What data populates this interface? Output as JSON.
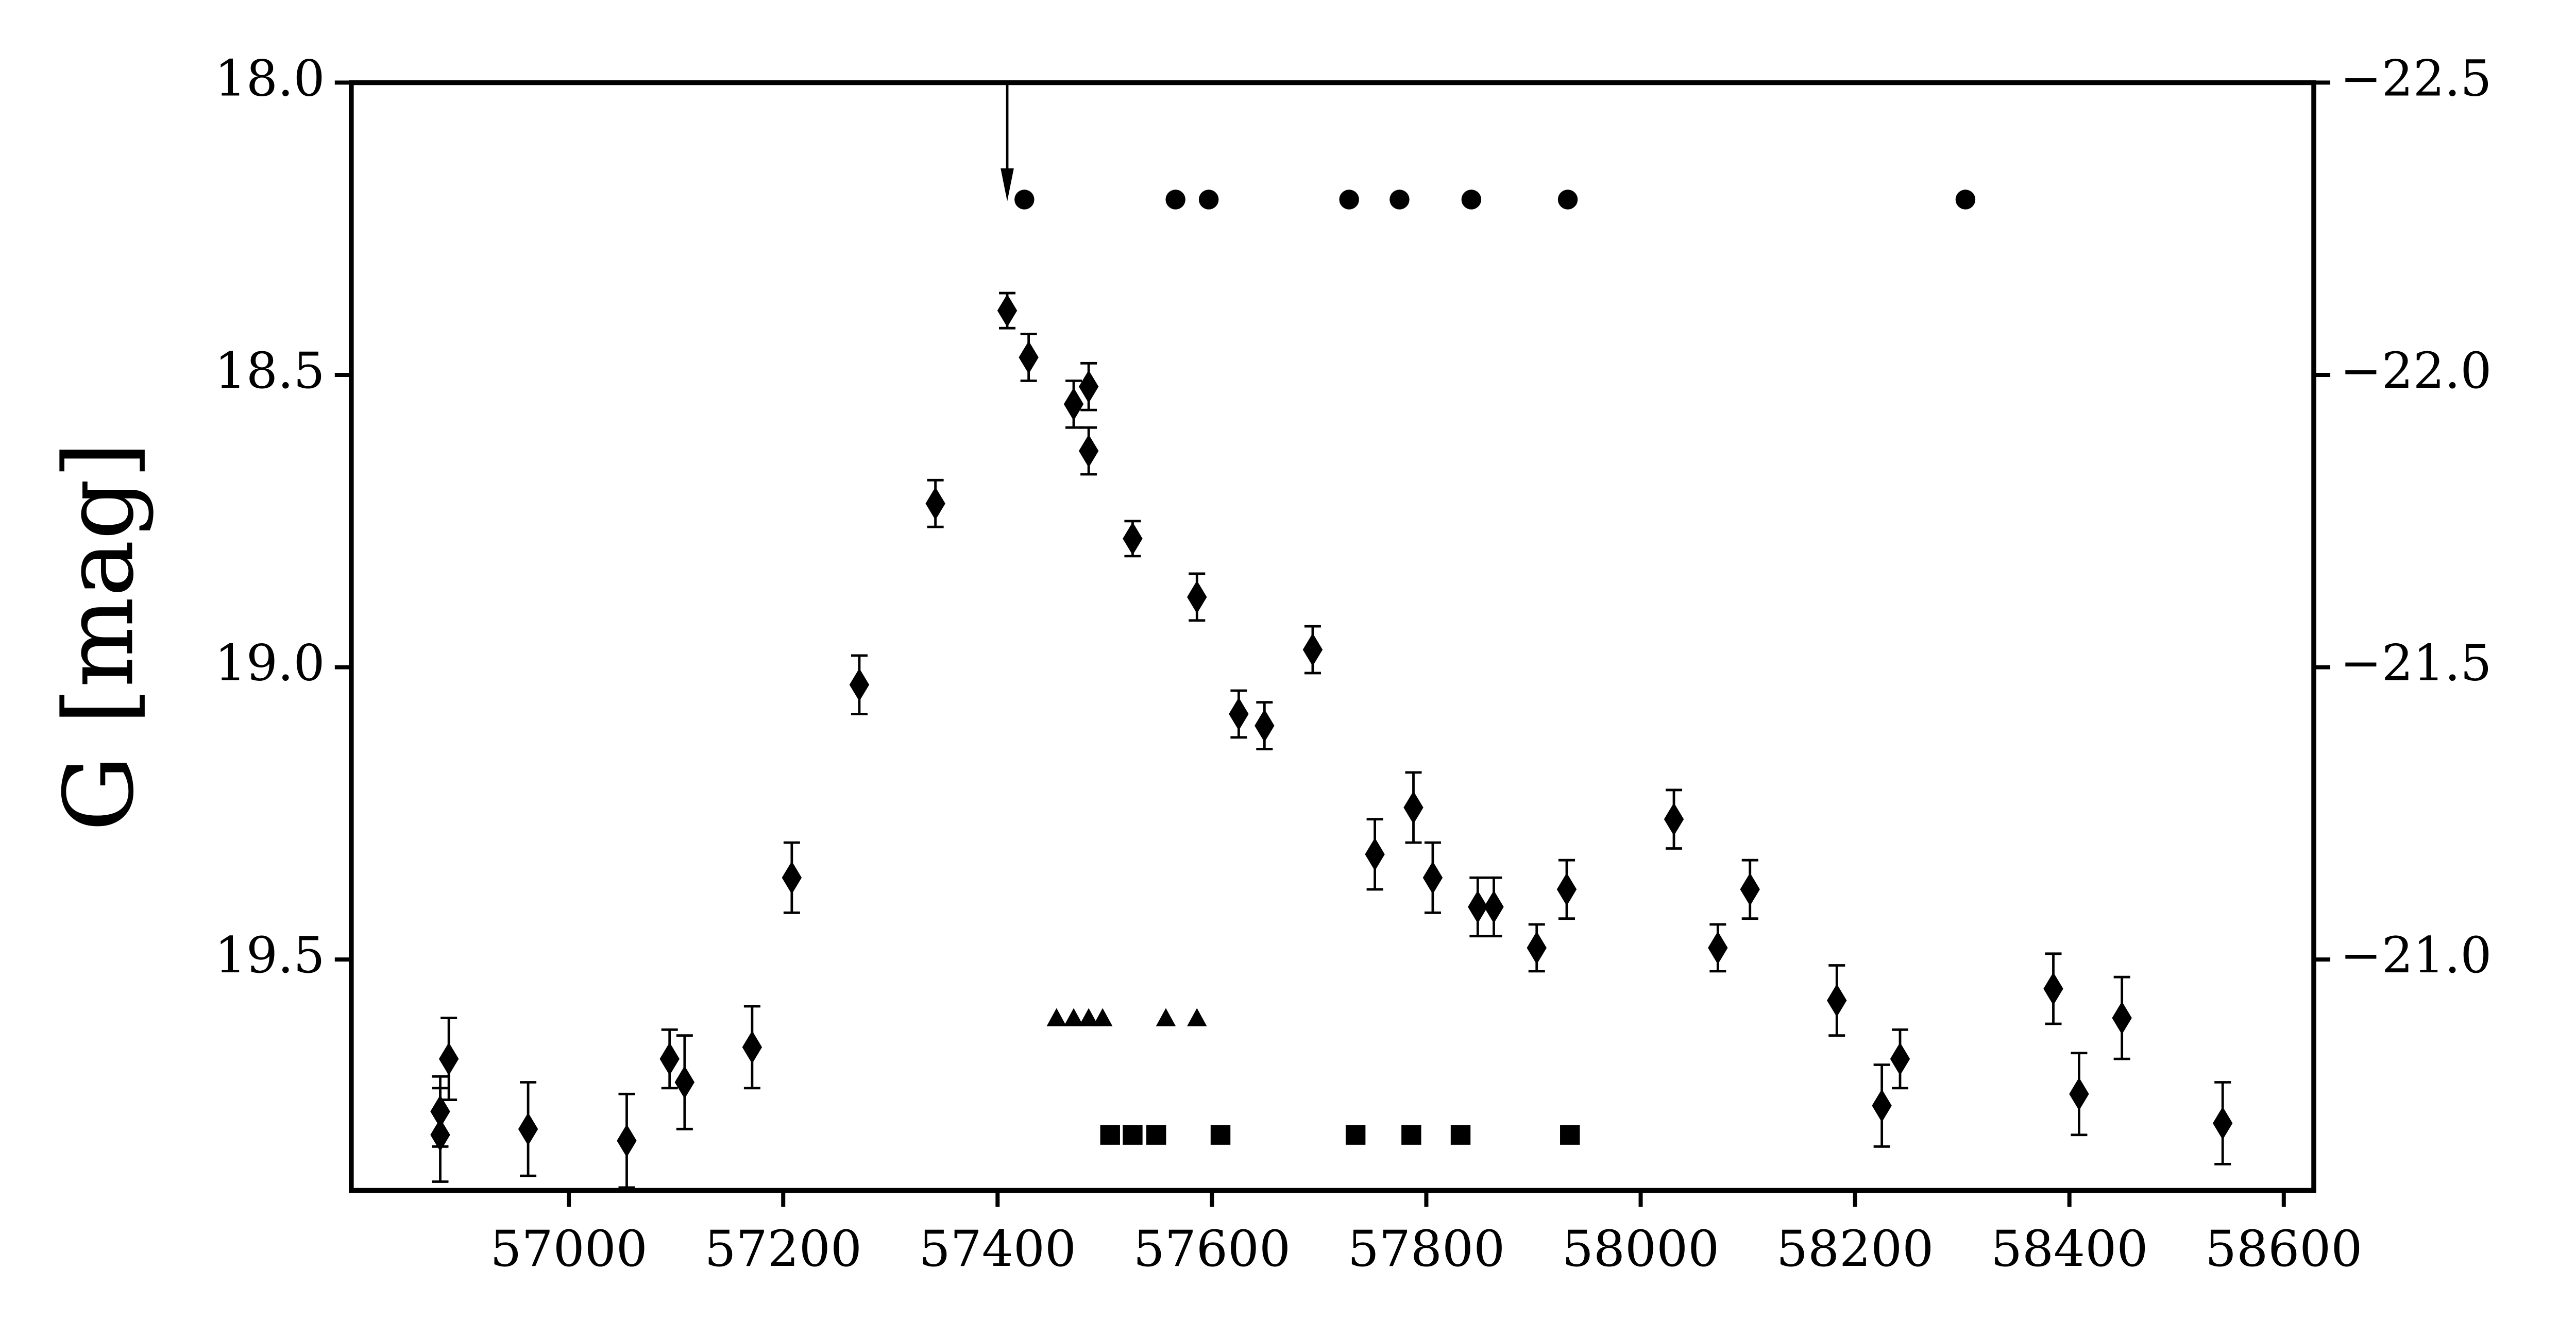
{
  "chart_data": {
    "type": "scatter",
    "y_label": "G [mag]",
    "xlim": [
      56797,
      58628
    ],
    "xticks": [
      57000,
      57200,
      57400,
      57600,
      57800,
      58000,
      58200,
      58400,
      58600
    ],
    "ylim": [
      18.0,
      19.895
    ],
    "y_inverted": true,
    "yticks": [
      {
        "value": 18.0,
        "label": "18.0"
      },
      18.5,
      {
        "value": 19.0,
        "label": "19.0"
      },
      19.5
    ],
    "y2lim": [
      -22.5,
      -20.605
    ],
    "y2ticks": [
      {
        "value": -22.5,
        "label": "−22.5"
      },
      {
        "value": -22.0,
        "label": "−22.0"
      },
      {
        "value": -21.5,
        "label": "−21.5"
      },
      {
        "value": -21.0,
        "label": "−21.0"
      }
    ],
    "arrow_x": 57409,
    "series": [
      {
        "marker": "diamond",
        "color": "#000000",
        "x": [
          56880,
          56880,
          56888,
          56962,
          57054,
          57094,
          57108,
          57171,
          57208,
          57271,
          57342,
          57409,
          57429,
          57471,
          57485,
          57485,
          57526,
          57586,
          57625,
          57649,
          57694,
          57752,
          57788,
          57806,
          57848,
          57863,
          57903,
          57931,
          58031,
          58072,
          58102,
          58183,
          58225,
          58242,
          58385,
          58409,
          58449,
          58543
        ],
        "values": [
          19.8,
          19.76,
          19.67,
          19.79,
          19.81,
          19.67,
          19.71,
          19.65,
          19.36,
          19.03,
          18.72,
          18.39,
          18.47,
          18.55,
          18.52,
          18.63,
          18.78,
          18.88,
          19.08,
          19.1,
          18.97,
          19.32,
          19.24,
          19.36,
          19.41,
          19.41,
          19.48,
          19.38,
          19.26,
          19.48,
          19.38,
          19.57,
          19.75,
          19.67,
          19.55,
          19.73,
          19.6,
          19.78
        ],
        "errors": [
          0.08,
          0.06,
          0.07,
          0.08,
          0.08,
          0.05,
          0.08,
          0.07,
          0.06,
          0.05,
          0.04,
          0.03,
          0.04,
          0.04,
          0.04,
          0.04,
          0.03,
          0.04,
          0.04,
          0.04,
          0.04,
          0.06,
          0.06,
          0.06,
          0.05,
          0.05,
          0.04,
          0.05,
          0.05,
          0.04,
          0.05,
          0.06,
          0.07,
          0.05,
          0.06,
          0.07,
          0.07,
          0.07
        ]
      },
      {
        "marker": "circle",
        "color": "#000000",
        "x": [
          57425,
          57566,
          57597,
          57728,
          57775,
          57842,
          57932,
          58303
        ],
        "values": [
          18.2,
          18.2,
          18.2,
          18.2,
          18.2,
          18.2,
          18.2,
          18.2
        ]
      },
      {
        "marker": "triangle",
        "color": "#000000",
        "x": [
          57455,
          57471,
          57485,
          57498,
          57557,
          57586
        ],
        "values": [
          19.6,
          19.6,
          19.6,
          19.6,
          19.6,
          19.6
        ]
      },
      {
        "marker": "square",
        "color": "#000000",
        "x": [
          57505,
          57526,
          57548,
          57608,
          57734,
          57786,
          57832,
          57934
        ],
        "values": [
          19.8,
          19.8,
          19.8,
          19.8,
          19.8,
          19.8,
          19.8,
          19.8
        ]
      }
    ]
  }
}
